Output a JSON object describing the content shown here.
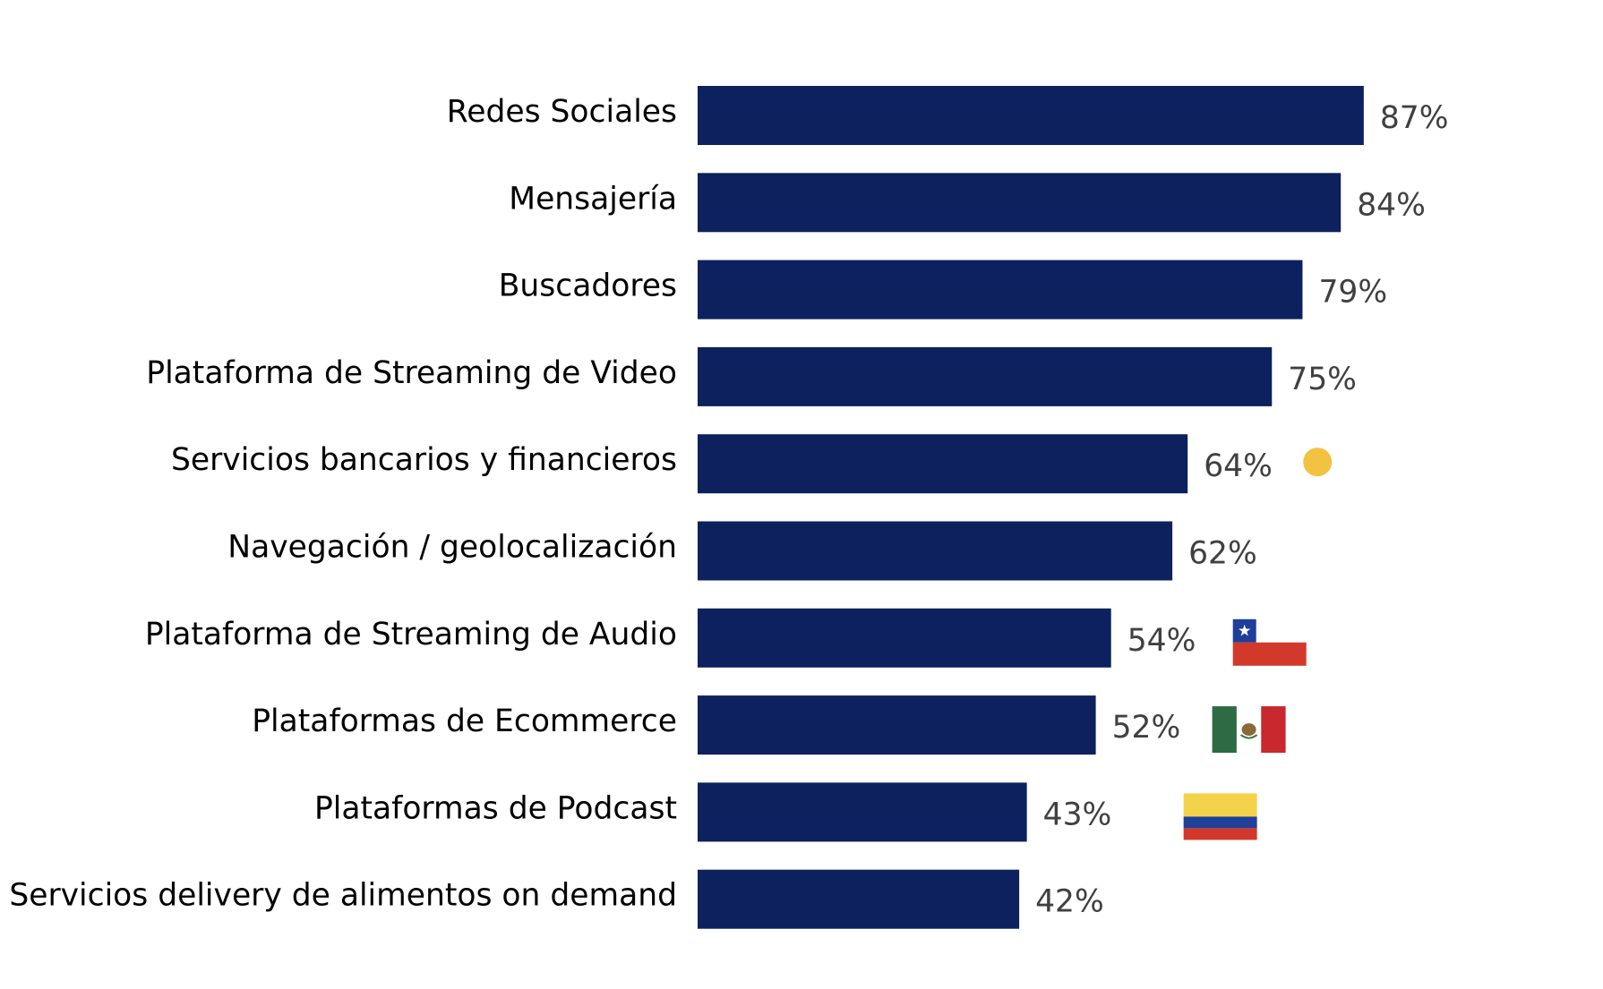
{
  "chart_data": {
    "type": "bar",
    "orientation": "horizontal",
    "categories": [
      "Redes Sociales",
      "Mensajería",
      "Buscadores",
      "Plataforma de Streaming de Video",
      "Servicios bancarios y financieros",
      "Navegación / geolocalización",
      "Plataforma de Streaming de Audio",
      "Plataformas de Ecommerce",
      "Plataformas de Podcast",
      "Servicios delivery de alimentos on demand"
    ],
    "values": [
      87,
      84,
      79,
      75,
      64,
      62,
      54,
      52,
      43,
      42
    ],
    "value_labels": [
      "87%",
      "84%",
      "79%",
      "75%",
      "64%",
      "62%",
      "54%",
      "52%",
      "43%",
      "42%"
    ],
    "bar_color": "#0c215d",
    "label_color": "#000000",
    "value_label_color": "#404040",
    "xlim": [
      0,
      100
    ],
    "grid": false,
    "legend": "none",
    "markers": [
      {
        "category_index": 4,
        "type": "dot",
        "icon": "yellow-dot-icon",
        "color": "#f2c240"
      },
      {
        "category_index": 6,
        "type": "flag",
        "icon": "chile-flag-icon",
        "colors": [
          "#1f3f9a",
          "#ffffff",
          "#d2392a"
        ]
      },
      {
        "category_index": 7,
        "type": "flag",
        "icon": "mexico-flag-icon",
        "colors": [
          "#2e6b45",
          "#ffffff",
          "#c8282e"
        ]
      },
      {
        "category_index": 8,
        "type": "flag",
        "icon": "colombia-flag-icon",
        "colors": [
          "#f4d34a",
          "#21409a",
          "#d2392a"
        ]
      }
    ]
  }
}
